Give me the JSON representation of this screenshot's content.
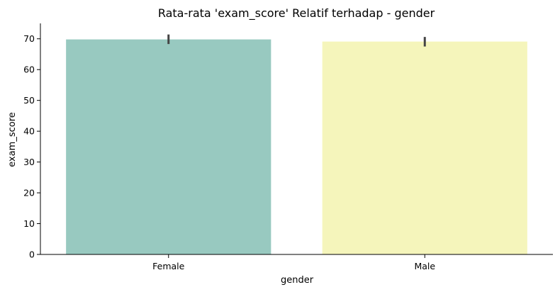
{
  "chart_data": {
    "type": "bar",
    "title": "Rata-rata 'exam_score' Relatif terhadap - gender",
    "xlabel": "gender",
    "ylabel": "exam_score",
    "categories": [
      "Female",
      "Male"
    ],
    "values": [
      69.8,
      69.1
    ],
    "error_bars": [
      {
        "low": 68.3,
        "high": 71.4
      },
      {
        "low": 67.5,
        "high": 70.6
      }
    ],
    "colors": [
      "#98c9c0",
      "#f5f5bb"
    ],
    "error_color": "#444444",
    "ylim": [
      0,
      75
    ],
    "yticks": [
      0,
      10,
      20,
      30,
      40,
      50,
      60,
      70
    ],
    "grid": false
  }
}
